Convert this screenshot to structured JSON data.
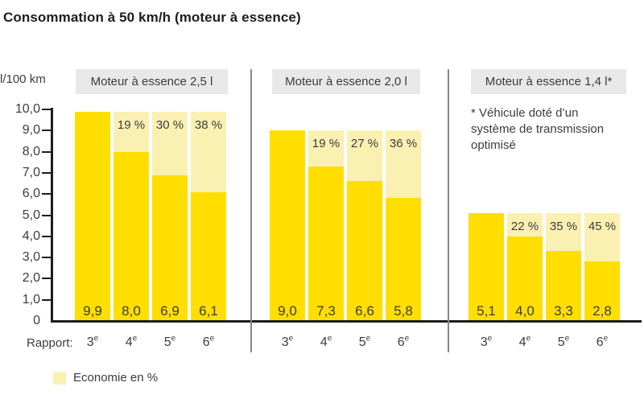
{
  "page": {
    "title": "Consommation à 50 km/h (moteur à essence)",
    "y_axis_unit": "l/100 km",
    "rapport_label": "Rapport:",
    "legend_label": "Economie en %",
    "footnote": "* Véhicule doté d’un système de transmission optimisé"
  },
  "colors": {
    "bar_yellow": "#FFDE00",
    "economy_light_yellow": "#FAF0B2",
    "header_bg": "#E8E8E8",
    "text_dark": "#3C3C3B",
    "axis_black": "#1D1D1B",
    "divider_gray": "#878787"
  },
  "chart_data": {
    "type": "bar",
    "title": "Consommation à 50 km/h (moteur à essence)",
    "ylabel": "l/100 km",
    "xlabel_prefix": "Rapport:",
    "ylim": [
      0,
      10
    ],
    "y_ticks": [
      0,
      1,
      2,
      3,
      4,
      5,
      6,
      7,
      8,
      9,
      10
    ],
    "categories": [
      "3e",
      "4e",
      "5e",
      "6e"
    ],
    "legend": [
      "Economie en %"
    ],
    "grid": false,
    "groups": [
      {
        "title": "Moteur à essence 2,5 l",
        "values": [
          9.9,
          8.0,
          6.9,
          6.1
        ],
        "economy_pct": [
          null,
          19,
          30,
          38
        ]
      },
      {
        "title": "Moteur à essence 2,0 l",
        "values": [
          9.0,
          7.3,
          6.6,
          5.8
        ],
        "economy_pct": [
          null,
          19,
          27,
          36
        ]
      },
      {
        "title": "Moteur à essence 1,4 l*",
        "values": [
          5.1,
          4.0,
          3.3,
          2.8
        ],
        "economy_pct": [
          null,
          22,
          35,
          45
        ]
      }
    ],
    "footnote": "* Véhicule doté d’un système de transmission optimisé"
  }
}
